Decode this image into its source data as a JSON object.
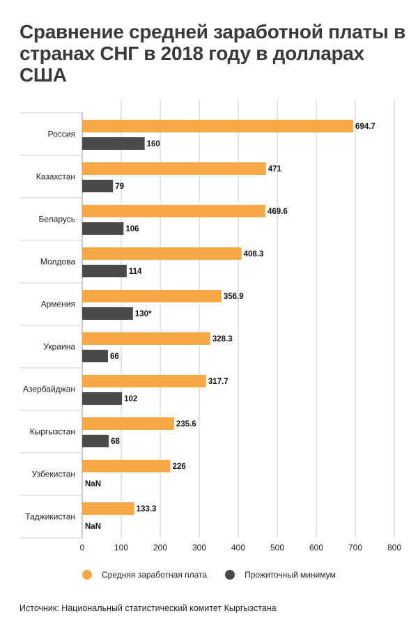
{
  "title": "Сравнение средней заработной платы в странах СНГ в 2018 году в долларах США",
  "source": "Источник: Национальный статистический комитет Кыргызстана",
  "colors": {
    "salary": "#f8a845",
    "minimum": "#4a4a4a",
    "grid": "#cccccc"
  },
  "chart_data": {
    "type": "bar",
    "orientation": "horizontal",
    "title": "Сравнение средней заработной платы в странах СНГ в 2018 году в долларах США",
    "xlim": [
      0,
      800
    ],
    "xticks": [
      "0",
      "100",
      "200",
      "300",
      "400",
      "500",
      "600",
      "700",
      "800"
    ],
    "grid": true,
    "legend_position": "bottom",
    "categories": [
      "Россия",
      "Казахстан",
      "Беларусь",
      "Молдова",
      "Армения",
      "Украина",
      "Азербайджан",
      "Кыргызстан",
      "Узбекистан",
      "Таджикистан"
    ],
    "series": [
      {
        "name": "Средняя заработная плата",
        "values": [
          694.7,
          471,
          469.6,
          408.3,
          356.9,
          328.3,
          317.7,
          235.6,
          226,
          133.3
        ],
        "labels": [
          "694.7",
          "471",
          "469.6",
          "408.3",
          "356.9",
          "328.3",
          "317.7",
          "235.6",
          "226",
          "133.3"
        ]
      },
      {
        "name": "Прожиточный минимум",
        "values": [
          160,
          79,
          106,
          114,
          130,
          66,
          102,
          68,
          null,
          null
        ],
        "labels": [
          "160",
          "79",
          "106",
          "114",
          "130*",
          "66",
          "102",
          "68",
          "NaN",
          "NaN"
        ]
      }
    ]
  }
}
